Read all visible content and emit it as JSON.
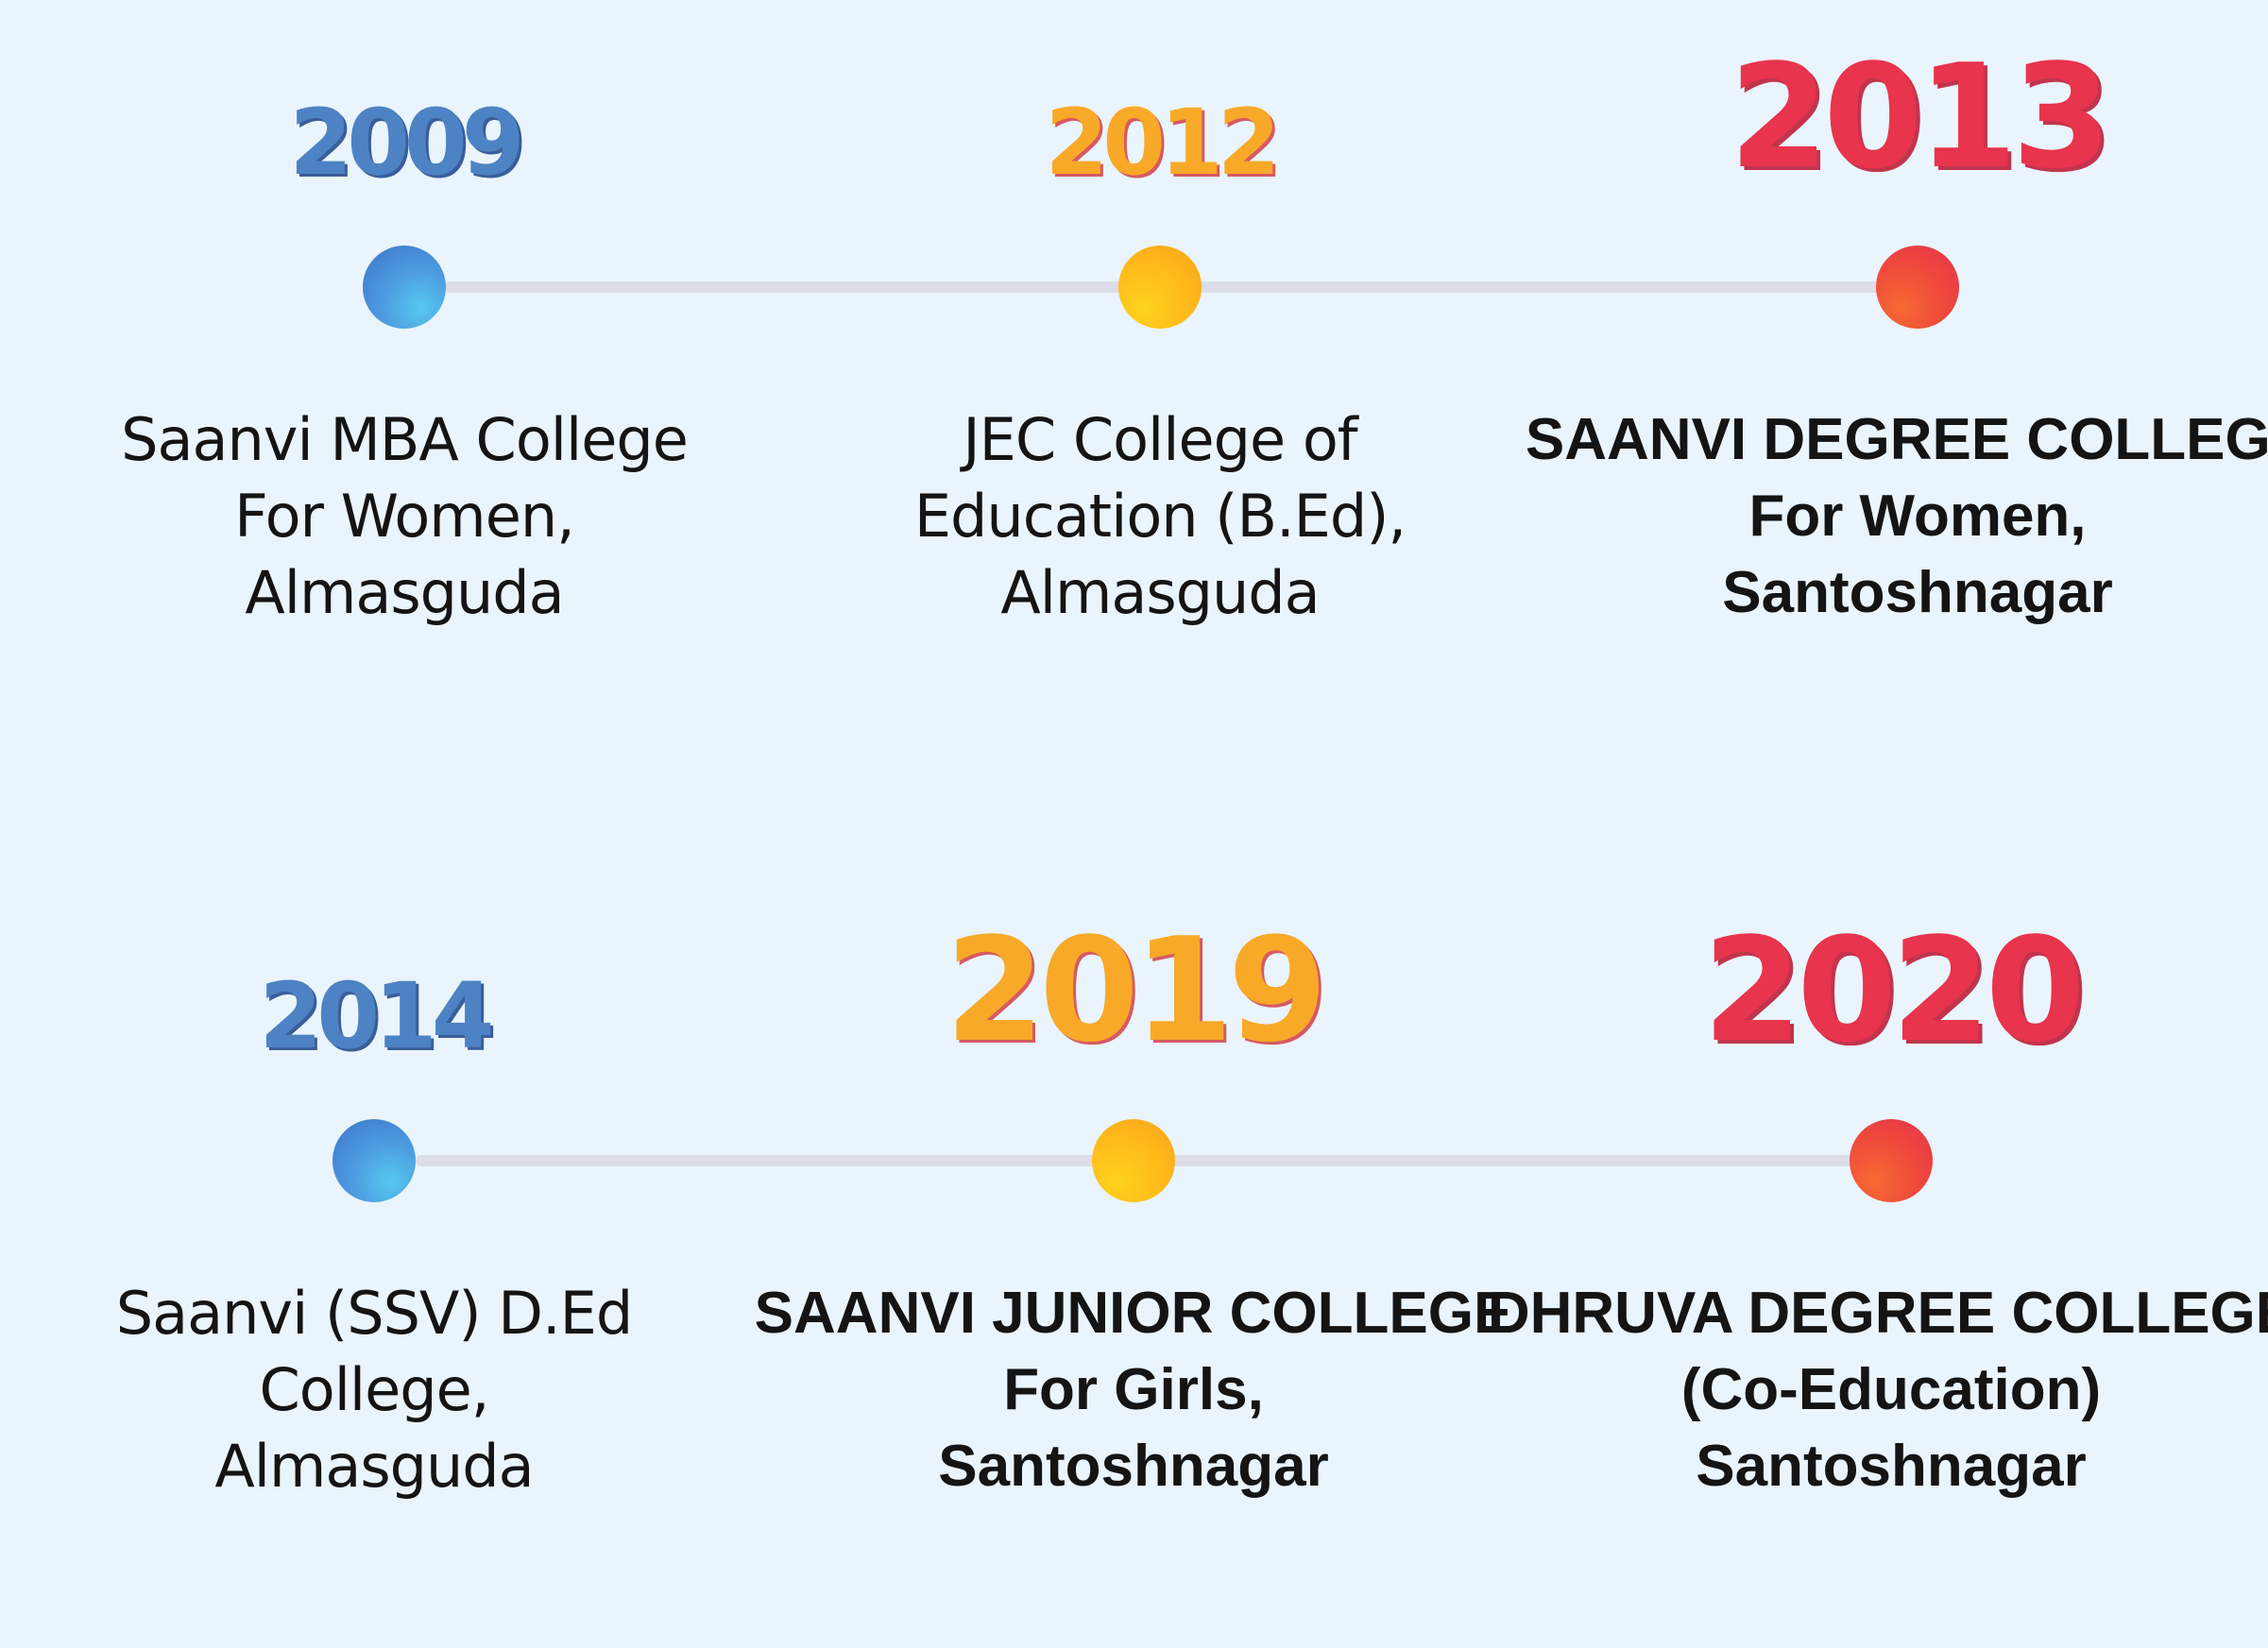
{
  "rows": [
    {
      "milestones": [
        {
          "year": "2009",
          "description": "Saanvi MBA College\nFor Women,\nAlmasguda"
        },
        {
          "year": "2012",
          "description": "JEC College of\nEducation (B.Ed),\nAlmasguda"
        },
        {
          "year": "2013",
          "description": "SAANVI DEGREE COLLEGE\nFor Women,\nSantoshnagar"
        }
      ]
    },
    {
      "milestones": [
        {
          "year": "2014",
          "description": "Saanvi (SSV) D.Ed\nCollege,\nAlmasguda"
        },
        {
          "year": "2019",
          "description": "SAANVI JUNIOR COLLEGE\nFor Girls,\nSantoshnagar"
        },
        {
          "year": "2020",
          "description": "DHRUVA DEGREE COLLEGE\n(Co-Education)\nSantoshnagar"
        }
      ]
    }
  ],
  "colors": {
    "background": "#eaf4fc",
    "track": "#dcdde6",
    "blue": "#4d83c4",
    "orange": "#f8a928",
    "red": "#e8344d",
    "text": "#141414"
  }
}
